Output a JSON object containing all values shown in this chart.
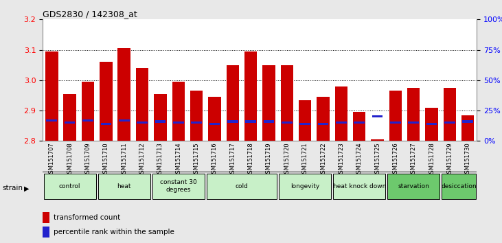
{
  "title": "GDS2830 / 142308_at",
  "samples": [
    "GSM151707",
    "GSM151708",
    "GSM151709",
    "GSM151710",
    "GSM151711",
    "GSM151712",
    "GSM151713",
    "GSM151714",
    "GSM151715",
    "GSM151716",
    "GSM151717",
    "GSM151718",
    "GSM151719",
    "GSM151720",
    "GSM151721",
    "GSM151722",
    "GSM151723",
    "GSM151724",
    "GSM151725",
    "GSM151726",
    "GSM151727",
    "GSM151728",
    "GSM151729",
    "GSM151730"
  ],
  "red_values": [
    3.095,
    2.955,
    2.995,
    3.06,
    3.105,
    3.04,
    2.955,
    2.995,
    2.965,
    2.945,
    3.05,
    3.095,
    3.05,
    3.05,
    2.935,
    2.945,
    2.98,
    2.895,
    2.805,
    2.965,
    2.975,
    2.91,
    2.975,
    2.885
  ],
  "blue_pct": [
    17,
    15,
    17,
    14,
    17,
    15,
    16,
    15,
    15,
    14,
    16,
    16,
    16,
    15,
    14,
    14,
    15,
    15,
    20,
    15,
    15,
    14,
    15,
    16
  ],
  "groups": [
    {
      "label": "control",
      "start": 0,
      "end": 2,
      "color": "#c8f0c8"
    },
    {
      "label": "heat",
      "start": 3,
      "end": 5,
      "color": "#c8f0c8"
    },
    {
      "label": "constant 30\ndegrees",
      "start": 6,
      "end": 8,
      "color": "#c8f0c8"
    },
    {
      "label": "cold",
      "start": 9,
      "end": 12,
      "color": "#c8f0c8"
    },
    {
      "label": "longevity",
      "start": 13,
      "end": 15,
      "color": "#c8f0c8"
    },
    {
      "label": "heat knock down",
      "start": 16,
      "end": 18,
      "color": "#c8f0c8"
    },
    {
      "label": "starvation",
      "start": 19,
      "end": 21,
      "color": "#6dc96d"
    },
    {
      "label": "desiccation",
      "start": 22,
      "end": 23,
      "color": "#6dc96d"
    }
  ],
  "ylim_left": [
    2.8,
    3.2
  ],
  "ylim_right": [
    0,
    100
  ],
  "yticks_left": [
    2.8,
    2.9,
    3.0,
    3.1,
    3.2
  ],
  "yticks_right": [
    0,
    25,
    50,
    75,
    100
  ],
  "ytick_labels_right": [
    "0%",
    "25%",
    "50%",
    "75%",
    "100%"
  ],
  "bar_color": "#cc0000",
  "blue_color": "#2222cc",
  "baseline": 2.8,
  "bar_width": 0.7,
  "fig_bg": "#e8e8e8",
  "plot_bg": "#ffffff",
  "legend_items": [
    {
      "color": "#cc0000",
      "label": "transformed count"
    },
    {
      "color": "#2222cc",
      "label": "percentile rank within the sample"
    }
  ]
}
